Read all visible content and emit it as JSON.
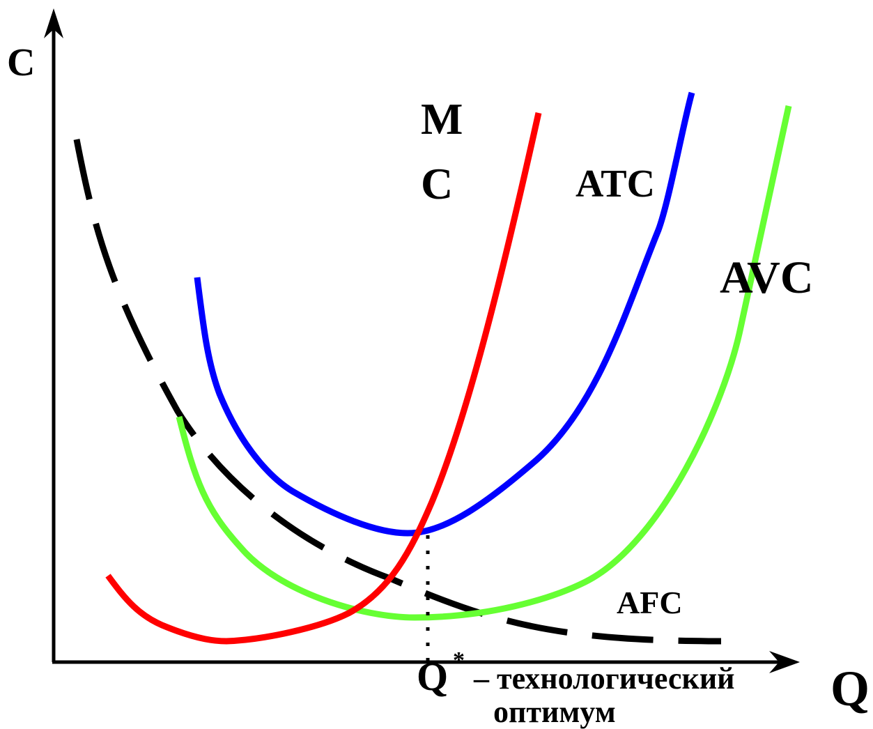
{
  "axes": {
    "y_label": "C",
    "x_label": "Q"
  },
  "curves": [
    {
      "id": "MC",
      "label_line1": "M",
      "label_line2": "C",
      "color": "#ff0000",
      "style": "solid"
    },
    {
      "id": "ATC",
      "label": "ATC",
      "color": "#0000ff",
      "style": "solid"
    },
    {
      "id": "AVC",
      "label": "AVC",
      "color": "#66ff33",
      "style": "solid"
    },
    {
      "id": "AFC",
      "label": "AFC",
      "color": "#000000",
      "style": "dashed"
    }
  ],
  "optimum": {
    "marker": "Q",
    "superscript": "*",
    "caption_line1": "– технологический",
    "caption_line2": "оптимум"
  }
}
